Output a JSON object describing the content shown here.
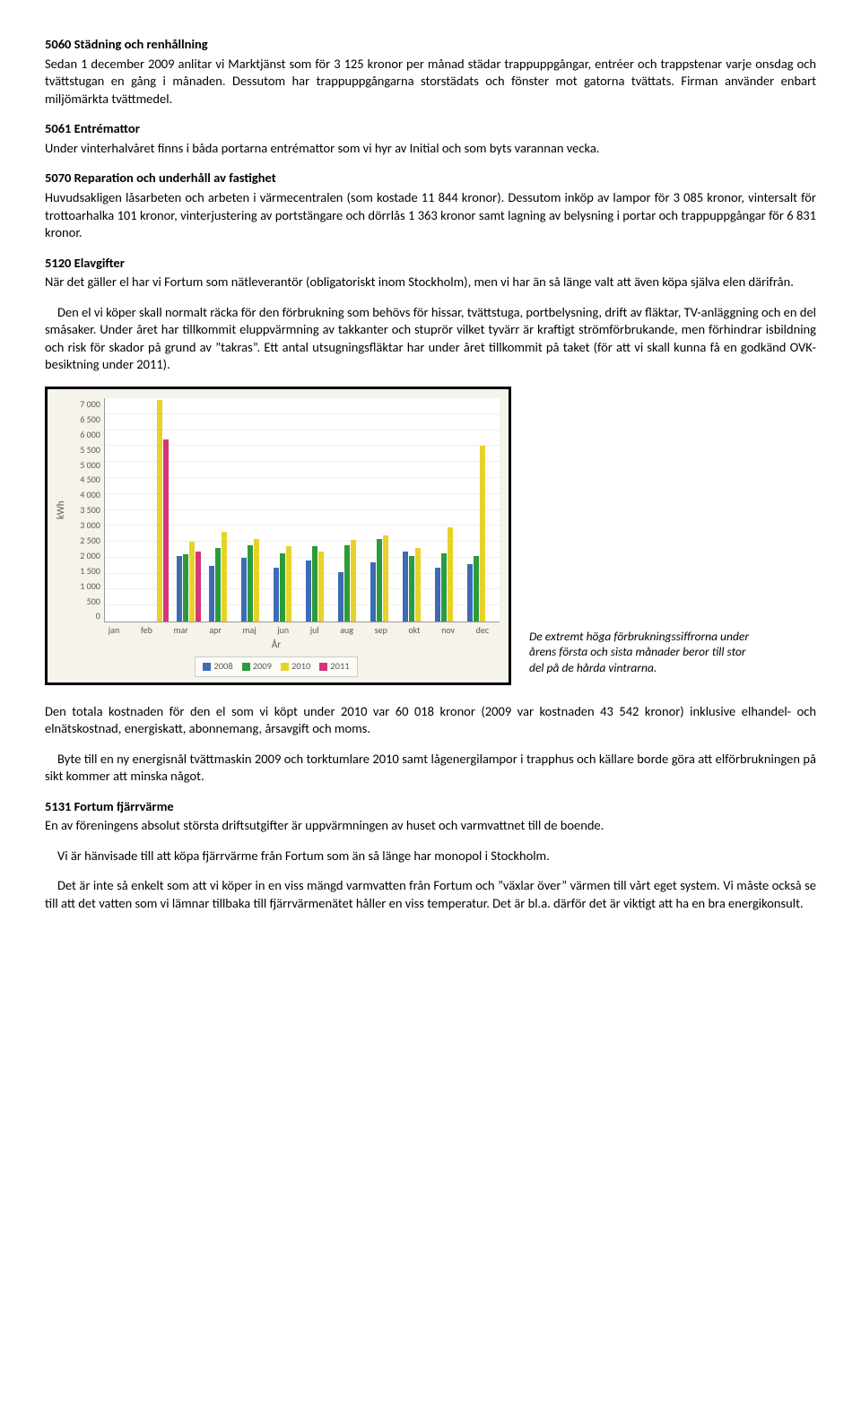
{
  "s5060": {
    "title": "5060 Städning och renhållning",
    "p1": "Sedan 1 december 2009 anlitar vi Marktjänst som för 3 125 kronor per månad städar trappuppgångar, entréer och trappstenar varje onsdag och tvättstugan en gång i månaden. Dessutom har trappuppgångarna storstädats och fönster mot gatorna tvättats. Firman använder enbart miljömärkta tvättmedel."
  },
  "s5061": {
    "title": "5061  Entrémattor",
    "p1": "Under vinterhalvåret finns i båda portarna entrémattor som vi hyr av Initial och som byts varannan vecka."
  },
  "s5070": {
    "title": "5070 Reparation och underhåll av fastighet",
    "p1": "Huvudsakligen låsarbeten och arbeten i värmecentralen (som kostade 11 844 kronor). Dessutom inköp av lampor för 3 085 kronor, vintersalt för trottoarhalka 101 kronor, vinterjustering av portstängare och dörrlås 1 363 kronor samt lagning av belysning i portar och trappuppgångar för 6 831 kronor."
  },
  "s5120": {
    "title": "5120 Elavgifter",
    "p1": "När det gäller el har vi Fortum som nätleverantör (obligatoriskt inom Stockholm), men vi har än så länge valt att även köpa själva elen därifrån.",
    "p2": "Den el vi köper skall normalt räcka för den förbrukning som behövs för hissar, tvättstuga, portbelysning, drift av fläktar, TV-anläggning och en del småsaker. Under året har tillkommit eluppvärmning av takkanter och stuprör vilket tyvärr är kraftigt strömförbrukande, men förhindrar isbildning och risk för skador på grund av ”takras”. Ett antal utsugningsfläktar har under året tillkommit på taket (för att vi skall kunna få en godkänd OVK-besiktning under 2011)."
  },
  "chart": {
    "type": "bar",
    "ylabel": "kWh",
    "xlabel": "År",
    "ymax": 7000,
    "ytick_step": 500,
    "months": [
      "jan",
      "feb",
      "mar",
      "apr",
      "maj",
      "jun",
      "jul",
      "aug",
      "sep",
      "okt",
      "nov",
      "dec"
    ],
    "series": [
      {
        "label": "2008",
        "color": "#3d6bb5"
      },
      {
        "label": "2009",
        "color": "#2c9b3a"
      },
      {
        "label": "2010",
        "color": "#e8d22a"
      },
      {
        "label": "2011",
        "color": "#d4367a"
      }
    ],
    "data": {
      "2008": [
        null,
        null,
        2050,
        1750,
        2000,
        1700,
        1900,
        1550,
        1850,
        2200,
        1700,
        1800
      ],
      "2009": [
        null,
        null,
        2100,
        2300,
        2400,
        2150,
        2350,
        2400,
        2600,
        2050,
        2150,
        2050
      ],
      "2010": [
        null,
        6950,
        2500,
        2800,
        2600,
        2350,
        2200,
        2550,
        2700,
        2300,
        2950,
        5500
      ],
      "2011": [
        null,
        5700,
        2200,
        null,
        null,
        null,
        null,
        null,
        null,
        null,
        null,
        null
      ]
    },
    "background_color": "#ffffff",
    "panel_color": "#f5f3ea",
    "grid_color": "#eeeeee"
  },
  "caption": "De extremt höga förbrukningssiffrorna under årens första och sista månader beror till stor del på de hårda vintrarna.",
  "after_chart": {
    "p1": "Den totala kostnaden för den el som vi köpt under 2010 var 60 018 kronor (2009 var kostnaden 43 542 kronor) inklusive elhandel- och elnätskostnad, energiskatt, abonnemang, årsavgift och moms.",
    "p2": "Byte till en ny energisnål tvättmaskin 2009 och torktumlare 2010 samt lågenergilampor i trapphus och källare borde göra att elförbrukningen på sikt kommer att minska något."
  },
  "s5131": {
    "title": "5131 Fortum fjärrvärme",
    "p1": "En av föreningens absolut största driftsutgifter är uppvärmningen av huset och varmvattnet till de boende.",
    "p2": "Vi är hänvisade till att köpa fjärrvärme från Fortum som än så länge har monopol i Stockholm.",
    "p3": "Det är inte så enkelt som att vi köper in en viss mängd varmvatten från Fortum och ”växlar över” värmen till vårt eget system. Vi måste också se till att det vatten som vi lämnar tillbaka till fjärrvärmenätet håller en viss temperatur. Det är bl.a. därför det är viktigt att ha en bra energikonsult."
  }
}
